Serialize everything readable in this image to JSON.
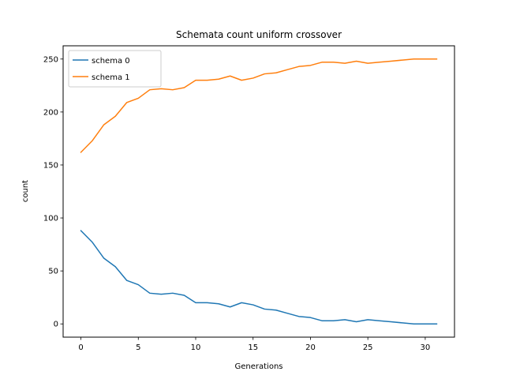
{
  "chart_data": {
    "type": "line",
    "title": "Schemata count uniform crossover",
    "xlabel": "Generations",
    "ylabel": "count",
    "xlim": [
      -1.55,
      32.55
    ],
    "ylim": [
      -12.5,
      262.5
    ],
    "xticks": [
      0,
      5,
      10,
      15,
      20,
      25,
      30
    ],
    "yticks": [
      0,
      50,
      100,
      150,
      200,
      250
    ],
    "grid": false,
    "legend_position": "top-left",
    "x": [
      0,
      1,
      2,
      3,
      4,
      5,
      6,
      7,
      8,
      9,
      10,
      11,
      12,
      13,
      14,
      15,
      16,
      17,
      18,
      19,
      20,
      21,
      22,
      23,
      24,
      25,
      26,
      27,
      28,
      29,
      30,
      31
    ],
    "series": [
      {
        "name": "schema 0",
        "color": "#1f77b4",
        "values": [
          88,
          77,
          62,
          54,
          41,
          37,
          29,
          28,
          29,
          27,
          20,
          20,
          19,
          16,
          20,
          18,
          14,
          13,
          10,
          7,
          6,
          3,
          3,
          4,
          2,
          4,
          3,
          2,
          1,
          0,
          0,
          0
        ]
      },
      {
        "name": "schema 1",
        "color": "#ff7f0e",
        "values": [
          162,
          173,
          188,
          196,
          209,
          213,
          221,
          222,
          221,
          223,
          230,
          230,
          231,
          234,
          230,
          232,
          236,
          237,
          240,
          243,
          244,
          247,
          247,
          246,
          248,
          246,
          247,
          248,
          249,
          250,
          250,
          250
        ]
      }
    ]
  }
}
